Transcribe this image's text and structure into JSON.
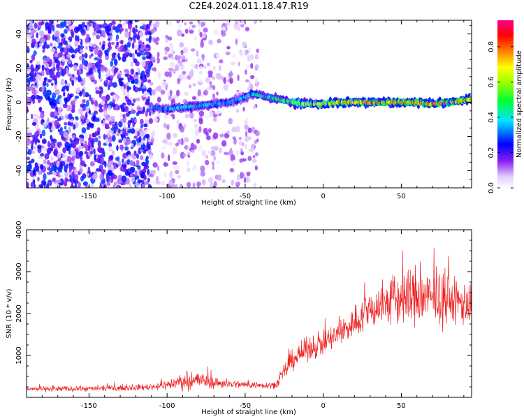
{
  "title": "C2E4.2024.011.18.47.R19",
  "colors": {
    "snr_line": "#ee2222",
    "spectrum_low": "#e6d0ff",
    "spectrum_mid": "#7a16e6",
    "spectrum_signal": "#00ff66",
    "spectrum_peak": "#ff1133"
  },
  "chart_data": [
    {
      "type": "heatmap",
      "title": "",
      "xlabel": "Height of straight line (km)",
      "ylabel": "Frequency (Hz)",
      "xlim": [
        -190,
        95
      ],
      "ylim": [
        -50,
        48
      ],
      "xticks": [
        -150,
        -100,
        -50,
        0,
        50
      ],
      "yticks": [
        -40,
        -20,
        0,
        20,
        40
      ],
      "colorbar": {
        "label": "Normalized spectral amplitude",
        "range": [
          0.0,
          0.95
        ],
        "ticks": [
          0.0,
          0.2,
          0.4,
          0.6,
          0.8
        ],
        "colormap": "rainbow (white-violet-blue-cyan-green-yellow-red-magenta)"
      },
      "signal_track": {
        "x": [
          -110,
          -100,
          -90,
          -80,
          -70,
          -60,
          -50,
          -45,
          -40,
          -30,
          -20,
          -10,
          0,
          10,
          20,
          30,
          40,
          50,
          60,
          70,
          80,
          90,
          95
        ],
        "freq": [
          -3,
          -4,
          -3,
          -2,
          -1,
          0,
          3,
          5,
          4,
          2,
          0,
          -1,
          -1,
          0,
          0,
          0,
          0,
          0,
          0,
          -1,
          0,
          1,
          2
        ],
        "amplitude": [
          0.35,
          0.4,
          0.45,
          0.45,
          0.4,
          0.4,
          0.4,
          0.45,
          0.5,
          0.55,
          0.6,
          0.7,
          0.75,
          0.8,
          0.8,
          0.85,
          0.85,
          0.85,
          0.85,
          0.85,
          0.85,
          0.85,
          0.8
        ]
      },
      "noise_regions": [
        {
          "x_range": [
            -190,
            -110
          ],
          "density": "high",
          "amplitude": 0.3
        },
        {
          "x_range": [
            -110,
            -42
          ],
          "density": "low",
          "amplitude": 0.15
        },
        {
          "x_range": [
            -42,
            95
          ],
          "density": "none",
          "amplitude": 0.0
        }
      ]
    },
    {
      "type": "line",
      "title": "",
      "xlabel": "Height of straight line (km)",
      "ylabel": "SNR (10 * v/v)",
      "xlim": [
        -190,
        95
      ],
      "ylim": [
        0,
        4000
      ],
      "xticks": [
        -150,
        -100,
        -50,
        0,
        50
      ],
      "yticks": [
        1000,
        2000,
        3000,
        4000
      ],
      "series": [
        {
          "x": [
            -190,
            -170,
            -150,
            -130,
            -110,
            -100,
            -90,
            -80,
            -70,
            -60,
            -50,
            -40,
            -30,
            -25,
            -20,
            -10,
            0,
            10,
            20,
            30,
            40,
            50,
            60,
            70,
            80,
            90,
            95
          ],
          "mean": [
            200,
            200,
            210,
            220,
            250,
            300,
            380,
            420,
            350,
            320,
            300,
            290,
            300,
            600,
            900,
            1150,
            1300,
            1500,
            1800,
            2100,
            2250,
            2350,
            2400,
            2350,
            2300,
            2250,
            2200
          ],
          "spread": [
            70,
            70,
            70,
            70,
            90,
            130,
            220,
            250,
            160,
            120,
            100,
            90,
            100,
            250,
            300,
            320,
            340,
            380,
            450,
            550,
            650,
            800,
            900,
            700,
            650,
            650,
            650
          ]
        }
      ]
    }
  ]
}
